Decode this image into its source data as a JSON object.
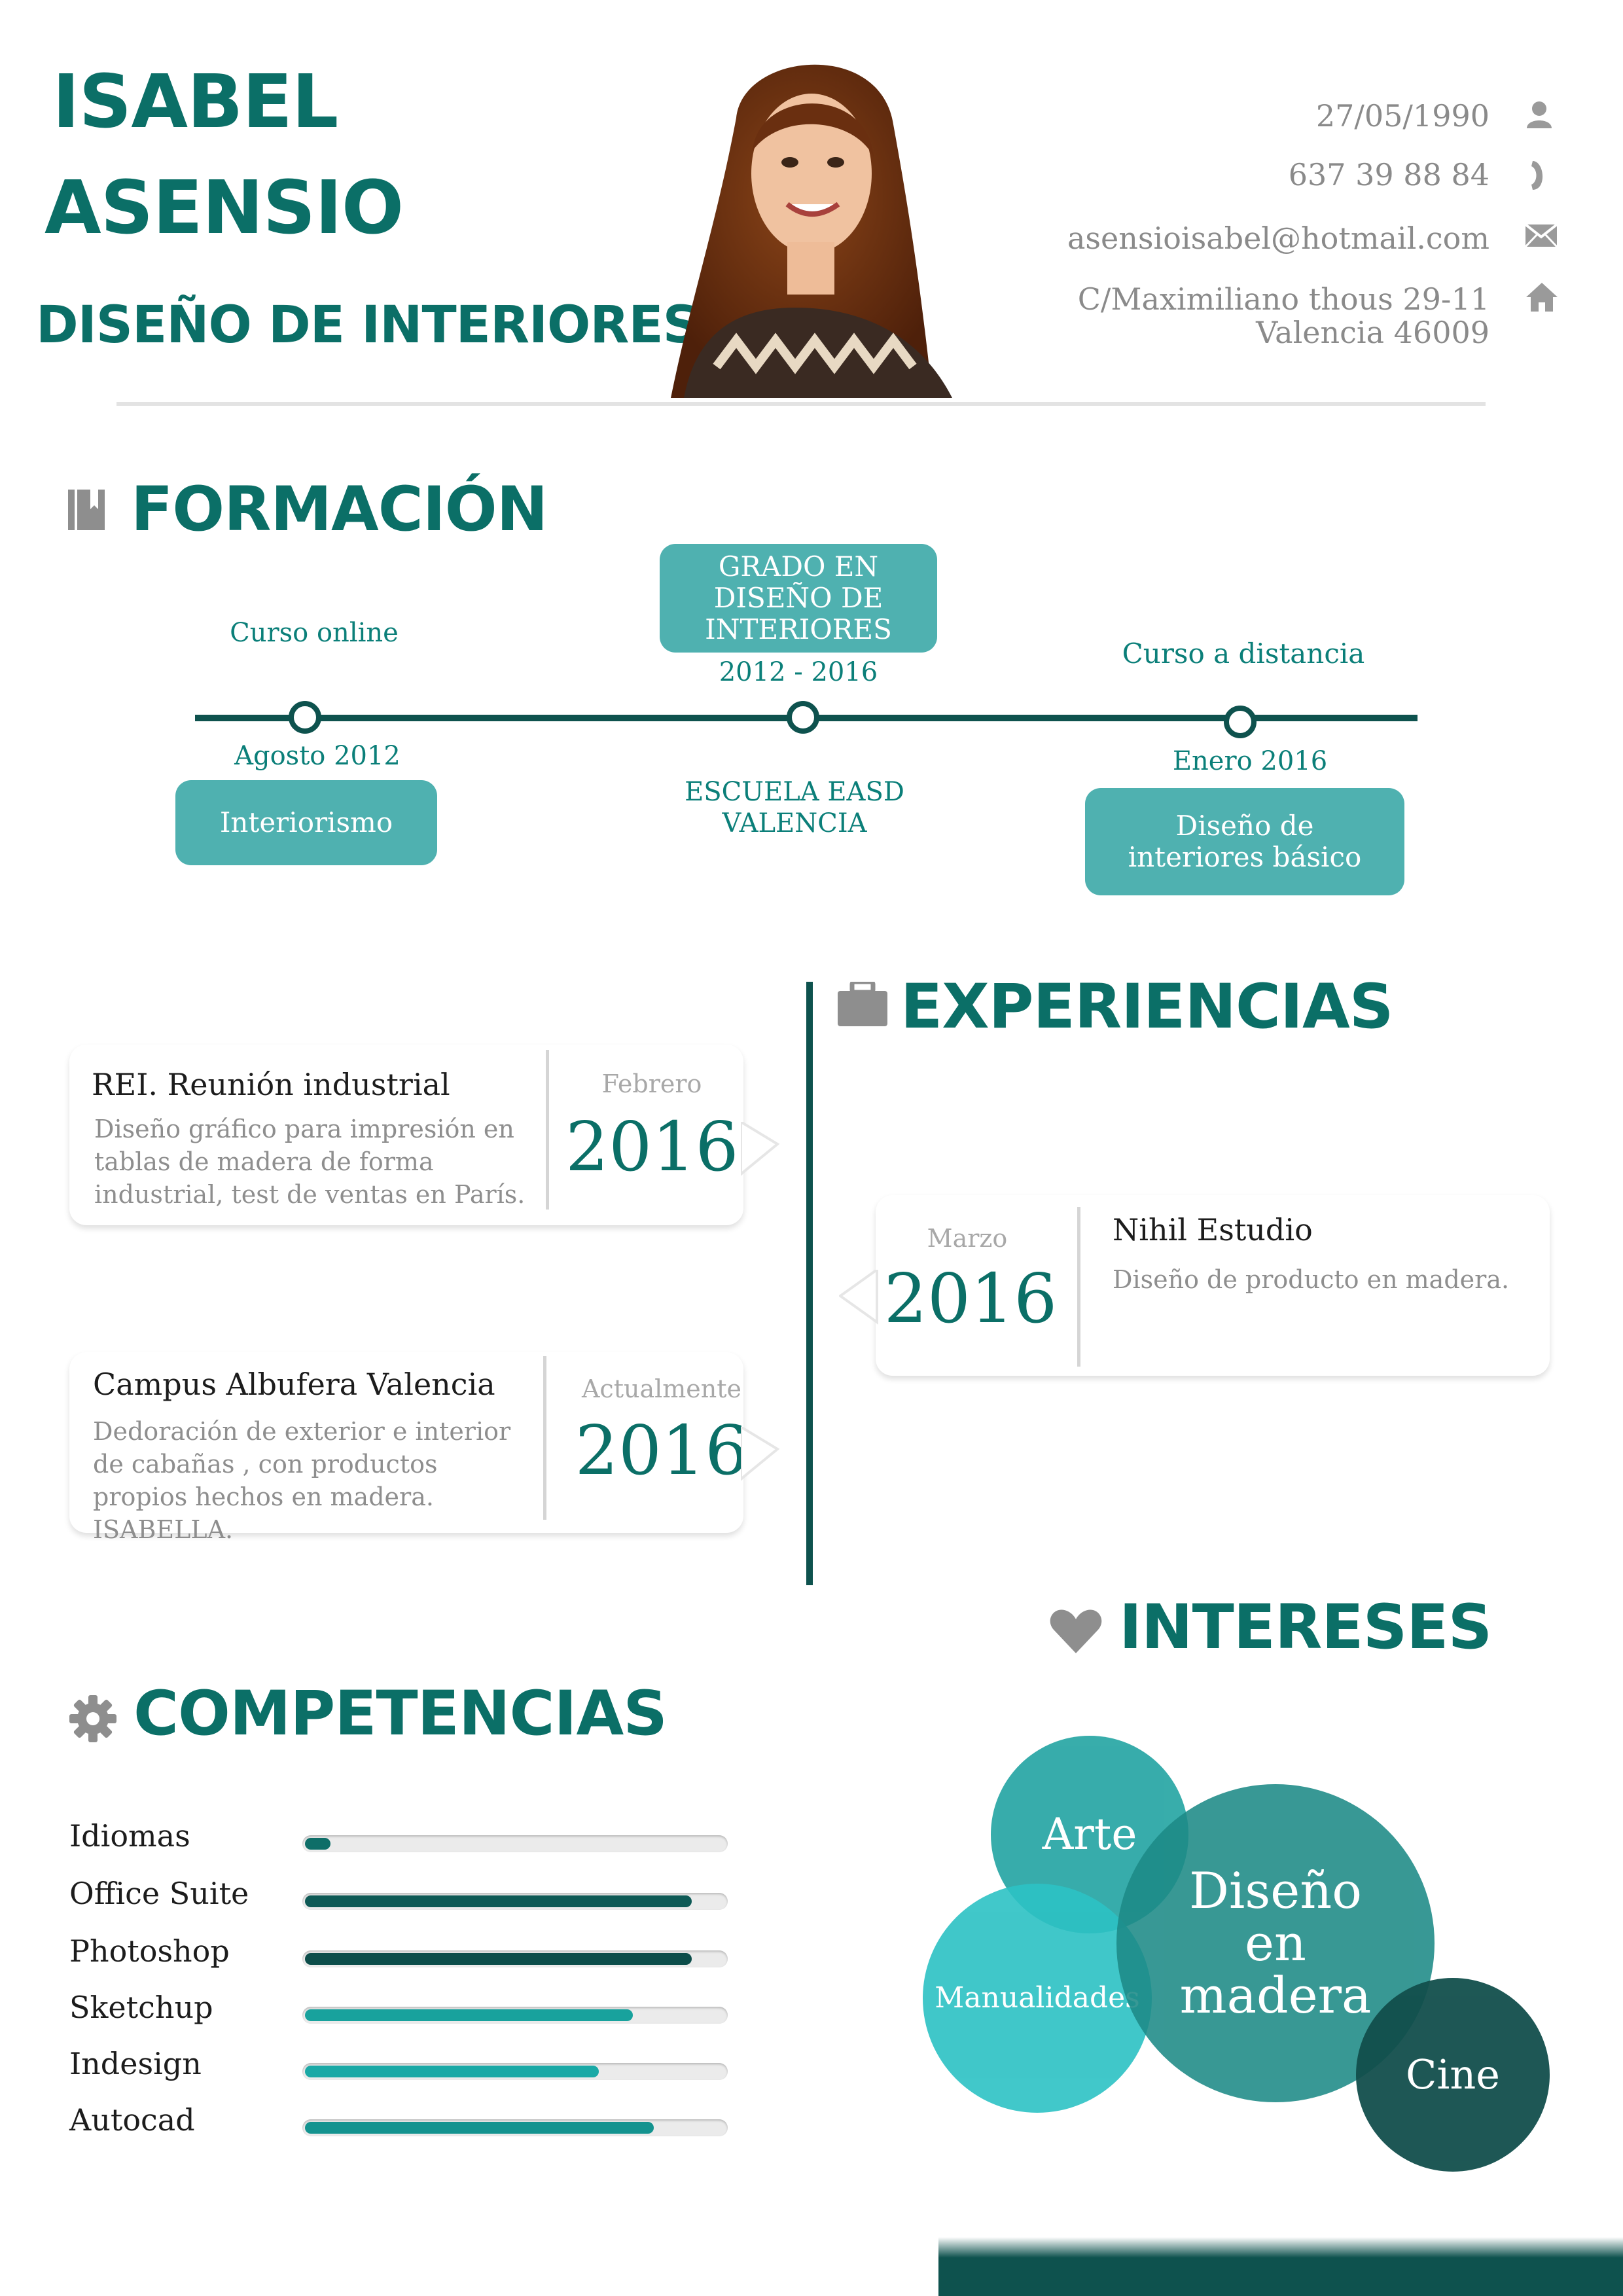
{
  "header": {
    "first_name": "ISABEL",
    "last_name": "ASENSIO",
    "profession": "DISEÑO DE INTERIORES",
    "photo_alt": "foto",
    "contact": {
      "birthdate": "27/05/1990",
      "phone": "637 39 88 84",
      "email": "asensioisabel@hotmail.com",
      "address_line1": "C/Maximiliano thous 29-11",
      "address_line2": "Valencia   46009"
    }
  },
  "formacion": {
    "title": "FORMACIÓN",
    "items": [
      {
        "top_label": "Curso online",
        "bottom_label": "Agosto 2012",
        "box": "Interiorismo"
      },
      {
        "box": "GRADO EN DISEÑO DE INTERIORES",
        "years": "2012 - 2016",
        "school": "ESCUELA EASD VALENCIA"
      },
      {
        "top_label": "Curso a distancia",
        "bottom_label": "Enero 2016",
        "box": "Diseño de interiores básico"
      }
    ]
  },
  "experiencias": {
    "title": "EXPERIENCIAS",
    "items": [
      {
        "title": "REI. Reunión industrial",
        "desc": "Diseño gráfico para impresión en tablas de madera de forma industrial, test de ventas en París.",
        "month": "Febrero",
        "year": "2016"
      },
      {
        "title": "Nihil Estudio",
        "desc": "Diseño de producto en madera.",
        "month": "Marzo",
        "year": "2016"
      },
      {
        "title": "Campus Albufera Valencia",
        "desc": "Dedoración de exterior e interior de cabañas , con productos propios hechos en madera. ISABELLA.",
        "month": "Actualmente",
        "year": "2016"
      }
    ]
  },
  "competencias": {
    "title": "COMPETENCIAS",
    "skills": [
      {
        "name": "Idiomas",
        "level": 0.06,
        "color": "#0e6e68"
      },
      {
        "name": "Office Suite",
        "level": 0.92,
        "color": "#0e5a56"
      },
      {
        "name": "Photoshop",
        "level": 0.92,
        "color": "#0c4d4a"
      },
      {
        "name": "Sketchup",
        "level": 0.78,
        "color": "#18a29d"
      },
      {
        "name": "Indesign",
        "level": 0.7,
        "color": "#1aa9a6"
      },
      {
        "name": "Autocad",
        "level": 0.83,
        "color": "#14938f"
      }
    ]
  },
  "intereses": {
    "title": "INTERESES",
    "items": [
      {
        "label": "Arte",
        "color": "#22a4a2"
      },
      {
        "label": "Manualidades",
        "color": "#2cc2c4"
      },
      {
        "label": "Diseño en madera",
        "color": "#1d8a86"
      },
      {
        "label": "Cine",
        "color": "#124f4c"
      }
    ]
  },
  "colors": {
    "accent": "#0b6f67",
    "dark": "#0e524e",
    "box": "#4fb1b0",
    "icon_gray": "#9a9a9a"
  }
}
